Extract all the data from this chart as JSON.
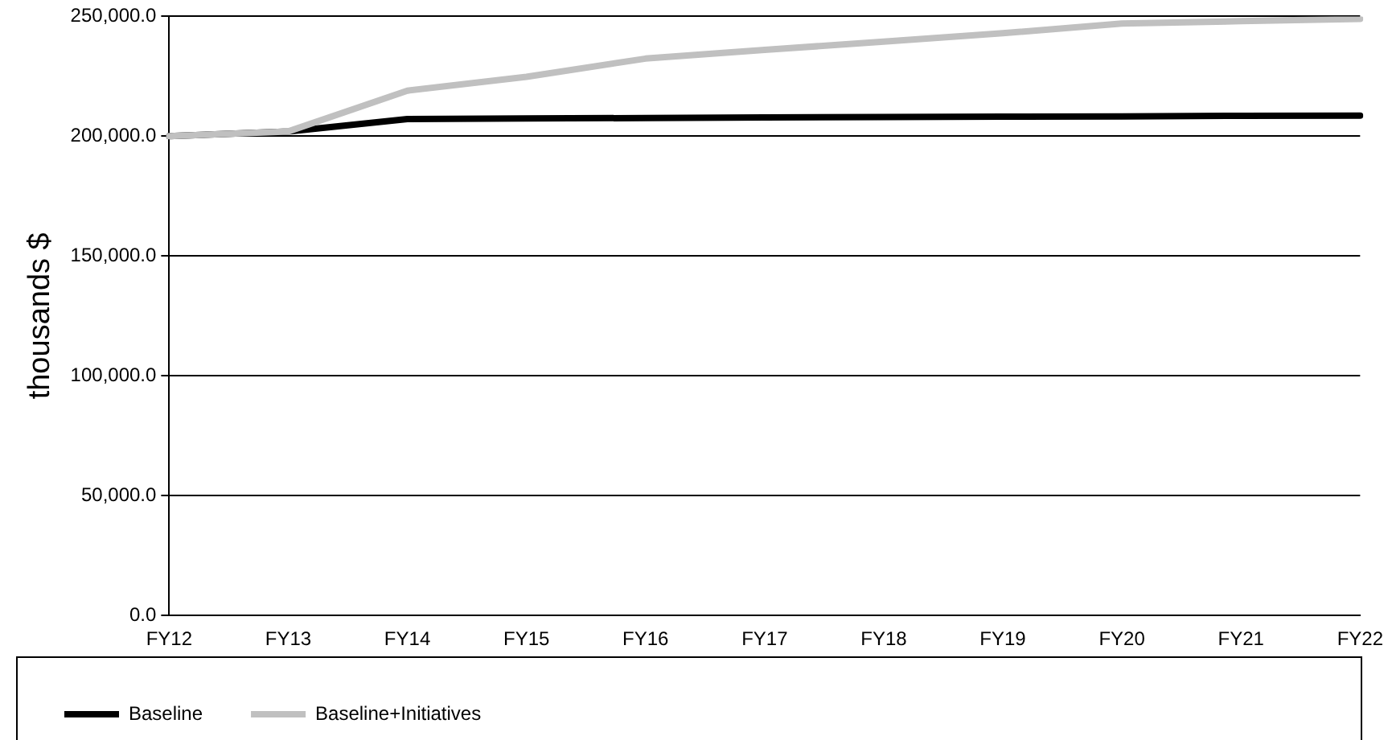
{
  "chart_data": {
    "type": "line",
    "ylabel": "thousands $",
    "categories": [
      "FY12",
      "FY13",
      "FY14",
      "FY15",
      "FY16",
      "FY17",
      "FY18",
      "FY19",
      "FY20",
      "FY21",
      "FY22"
    ],
    "series": [
      {
        "name": "Baseline",
        "color": "#000000",
        "values": [
          200000,
          202000,
          207200,
          207400,
          207600,
          207800,
          208000,
          208200,
          208300,
          208500,
          208600
        ]
      },
      {
        "name": "Baseline+Initiatives",
        "color": "#c0c0c0",
        "values": [
          200000,
          202000,
          219000,
          224800,
          232400,
          236000,
          239500,
          243000,
          247000,
          248000,
          249000
        ]
      }
    ],
    "ylim": [
      0,
      250000
    ],
    "yticks": [
      {
        "value": 0,
        "label": "0.0"
      },
      {
        "value": 50000,
        "label": "50,000.0"
      },
      {
        "value": 100000,
        "label": "100,000.0"
      },
      {
        "value": 150000,
        "label": "150,000.0"
      },
      {
        "value": 200000,
        "label": "200,000.0"
      },
      {
        "value": 250000,
        "label": "250,000.0"
      }
    ],
    "grid": "y",
    "legend": "bottom",
    "marker": "none",
    "line_style": "solid"
  }
}
